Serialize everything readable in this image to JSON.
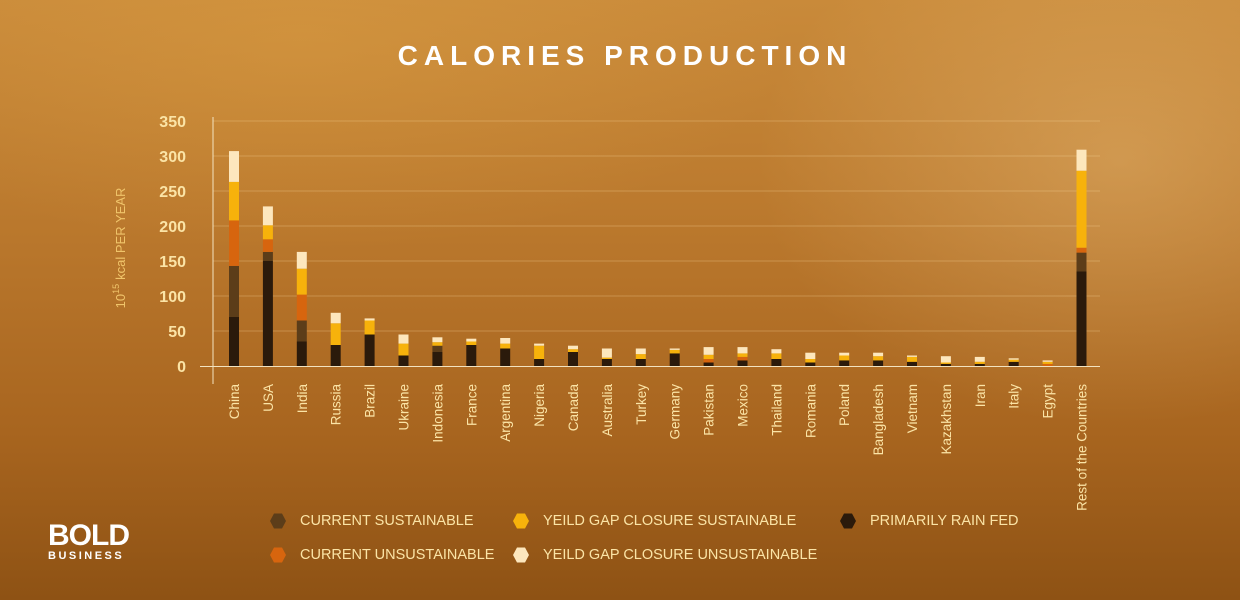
{
  "page": {
    "title": "CALORIES PRODUCTION",
    "logo_main": "BOLD",
    "logo_sub": "BUSINESS"
  },
  "colors": {
    "primarily_rain_fed": "#2b1a0b",
    "current_sustainable": "#5c3d19",
    "current_unsustainable": "#d7650e",
    "yield_gap_closure_sustainable": "#f7b20b",
    "yield_gap_closure_unsustainable": "#fde7bd",
    "axis_text": "#fbe4a6",
    "ylabel_text": "#f0c46a"
  },
  "chart_data": {
    "type": "bar",
    "stacked": true,
    "title": "CALORIES PRODUCTION",
    "ylabel": "kcal PER YEAR",
    "ylabel_base": "10",
    "ylabel_exp": "15",
    "ylim": [
      0,
      350
    ],
    "yticks": [
      0,
      50,
      100,
      150,
      200,
      250,
      300,
      350
    ],
    "grid": true,
    "legend_position": "bottom",
    "categories": [
      "China",
      "USA",
      "India",
      "Russia",
      "Brazil",
      "Ukraine",
      "Indonesia",
      "France",
      "Argentina",
      "Nigeria",
      "Canada",
      "Australia",
      "Turkey",
      "Germany",
      "Pakistan",
      "Mexico",
      "Thailand",
      "Romania",
      "Poland",
      "Bangladesh",
      "Vietnam",
      "Kazakhstan",
      "Iran",
      "Italy",
      "Egypt",
      "Rest of the Countries"
    ],
    "series": [
      {
        "name": "PRIMARILY RAIN FED",
        "values": [
          70,
          150,
          35,
          30,
          45,
          15,
          20,
          30,
          25,
          10,
          20,
          10,
          10,
          18,
          5,
          8,
          10,
          5,
          8,
          8,
          6,
          3,
          3,
          6,
          0,
          135
        ]
      },
      {
        "name": "CURRENT SUSTAINABLE",
        "values": [
          73,
          13,
          30,
          0,
          0,
          0,
          9,
          0,
          0,
          0,
          0,
          0,
          0,
          0,
          0,
          0,
          0,
          0,
          0,
          0,
          0,
          0,
          0,
          0,
          0,
          27
        ]
      },
      {
        "name": "CURRENT UNSUSTAINABLE",
        "values": [
          65,
          18,
          37,
          0,
          0,
          0,
          0,
          0,
          0,
          0,
          0,
          0,
          0,
          0,
          5,
          5,
          0,
          0,
          0,
          0,
          0,
          0,
          0,
          0,
          3,
          7
        ]
      },
      {
        "name": "YEILD GAP CLOSURE SUSTAINABLE",
        "values": [
          55,
          20,
          37,
          31,
          20,
          17,
          5,
          5,
          7,
          19,
          4,
          2,
          7,
          5,
          6,
          5,
          8,
          5,
          7,
          6,
          7,
          2,
          3,
          3,
          3,
          110
        ]
      },
      {
        "name": "YEILD GAP CLOSURE UNSUSTAINABLE",
        "values": [
          44,
          27,
          24,
          15,
          3,
          13,
          7,
          4,
          8,
          3,
          5,
          13,
          8,
          2,
          11,
          9,
          6,
          9,
          4,
          5,
          2,
          9,
          7,
          2,
          2,
          30
        ]
      }
    ]
  },
  "legend": [
    {
      "label": "CURRENT SUSTAINABLE",
      "color": "#5c3d19"
    },
    {
      "label": "YEILD GAP CLOSURE SUSTAINABLE",
      "color": "#f7b20b"
    },
    {
      "label": "PRIMARILY RAIN FED",
      "color": "#2b1a0b"
    },
    {
      "label": "CURRENT UNSUSTAINABLE",
      "color": "#d7650e"
    },
    {
      "label": "YEILD GAP CLOSURE UNSUSTAINABLE",
      "color": "#fde7bd"
    }
  ]
}
